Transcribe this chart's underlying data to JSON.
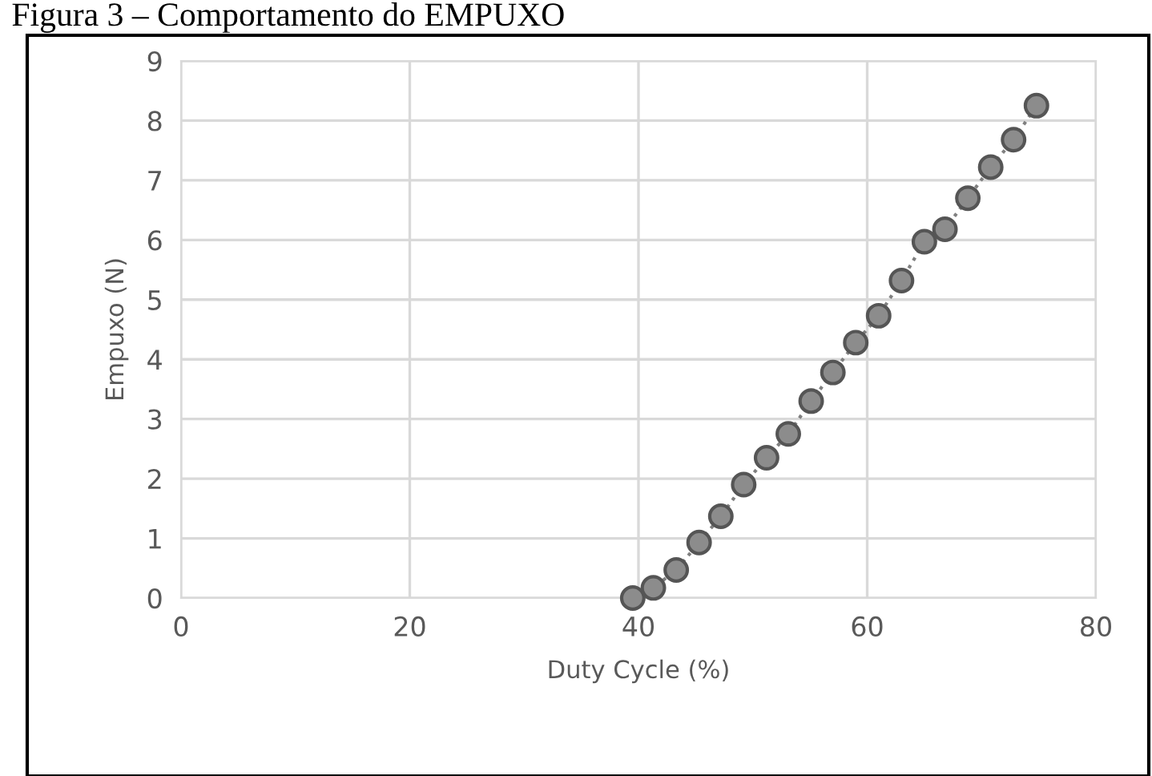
{
  "chart_data": {
    "type": "line",
    "title": "Figura 3 – Comportamento do EMPUXO",
    "xlabel": "Duty Cycle (%)",
    "ylabel": "Empuxo (N)",
    "x": [
      39.5,
      41.3,
      43.3,
      45.3,
      47.2,
      49.2,
      51.2,
      53.1,
      55.1,
      57.0,
      59.0,
      61.0,
      63.0,
      65.0,
      66.8,
      68.8,
      70.8,
      72.8,
      74.8
    ],
    "series": [
      {
        "color": "#8c8c8c",
        "values": [
          0,
          0.17,
          0.47,
          0.93,
          1.37,
          1.9,
          2.35,
          2.75,
          3.3,
          3.78,
          4.28,
          4.73,
          5.32,
          5.97,
          6.18,
          6.7,
          7.22,
          7.68,
          8.25
        ]
      }
    ],
    "xlim": [
      0,
      80
    ],
    "xticks": [
      0,
      20,
      40,
      60,
      80
    ],
    "ylim": [
      0,
      9
    ],
    "yticks": [
      0,
      1,
      2,
      3,
      4,
      5,
      6,
      7,
      8,
      9
    ],
    "grid": true,
    "marker": "circle",
    "line_style": "dotted",
    "legend": false
  }
}
